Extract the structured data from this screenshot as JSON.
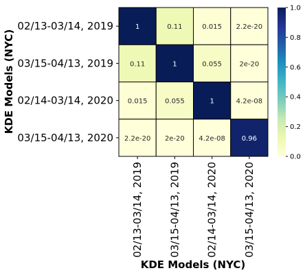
{
  "chart_data": {
    "type": "heatmap",
    "xlabel": "KDE Models (NYC)",
    "ylabel": "KDE Models (NYC)",
    "x_categories": [
      "02/13-03/14, 2019",
      "03/15-04/13, 2019",
      "02/14-03/14, 2020",
      "03/15-04/13, 2020"
    ],
    "y_categories": [
      "02/13-03/14, 2019",
      "03/15-04/13, 2019",
      "02/14-03/14, 2020",
      "03/15-04/13, 2020"
    ],
    "values": [
      [
        1,
        0.11,
        0.015,
        2.2e-20
      ],
      [
        0.11,
        1,
        0.055,
        2e-20
      ],
      [
        0.015,
        0.055,
        1,
        4.2e-08
      ],
      [
        2.2e-20,
        2e-20,
        4.2e-08,
        0.96
      ]
    ],
    "cell_labels": [
      [
        "1",
        "0.11",
        "0.015",
        "2.2e-20"
      ],
      [
        "0.11",
        "1",
        "0.055",
        "2e-20"
      ],
      [
        "0.015",
        "0.055",
        "1",
        "4.2e-08"
      ],
      [
        "2.2e-20",
        "2e-20",
        "4.2e-08",
        "0.96"
      ]
    ],
    "colormap": "YlGnBu",
    "colorbar": {
      "range": [
        0.0,
        1.0
      ],
      "ticks": [
        "0.0",
        "0.2",
        "0.4",
        "0.6",
        "0.8",
        "1.0"
      ]
    },
    "grid": false,
    "legend": "colorbar-right"
  }
}
